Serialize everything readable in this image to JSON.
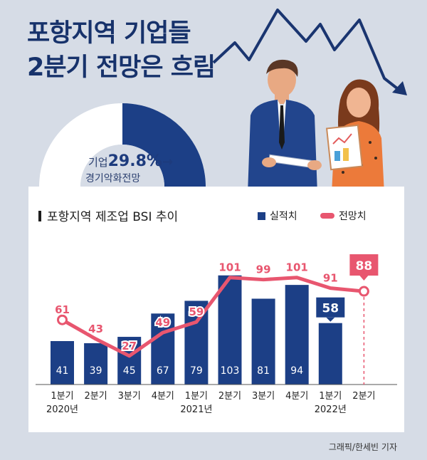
{
  "headline": {
    "line1": "포항지역 기업들",
    "line2": "2분기 전망은 흐림"
  },
  "donut": {
    "prefix": "기업",
    "percent": "29.8%",
    "percent_value": 29.8,
    "arrow": "→",
    "caption": "경기악화전망"
  },
  "colors": {
    "navy": "#1c3f86",
    "pink": "#e8566f",
    "background": "#d6dce6",
    "headline": "#17326b"
  },
  "chart_data": {
    "type": "bar",
    "title": "포항지역 제조업 BSI 추이",
    "categories": [
      "1분기",
      "2분기",
      "3분기",
      "4분기",
      "1분기",
      "2분기",
      "3분기",
      "4분기",
      "1분기",
      "2분기"
    ],
    "year_labels": [
      "2020년",
      "",
      "",
      "",
      "2021년",
      "",
      "",
      "",
      "2022년",
      ""
    ],
    "series": [
      {
        "name": "실적치",
        "type": "bar",
        "color": "#1c3f86",
        "values": [
          41,
          39,
          45,
          67,
          79,
          103,
          81,
          94,
          58,
          null
        ]
      },
      {
        "name": "전망치",
        "type": "line",
        "color": "#e8566f",
        "values": [
          61,
          43,
          27,
          49,
          59,
          101,
          99,
          101,
          91,
          88
        ]
      }
    ],
    "ylim": [
      0,
      125
    ],
    "grid": false,
    "legend": "top-right"
  },
  "credit": "그래픽/한세빈 기자"
}
